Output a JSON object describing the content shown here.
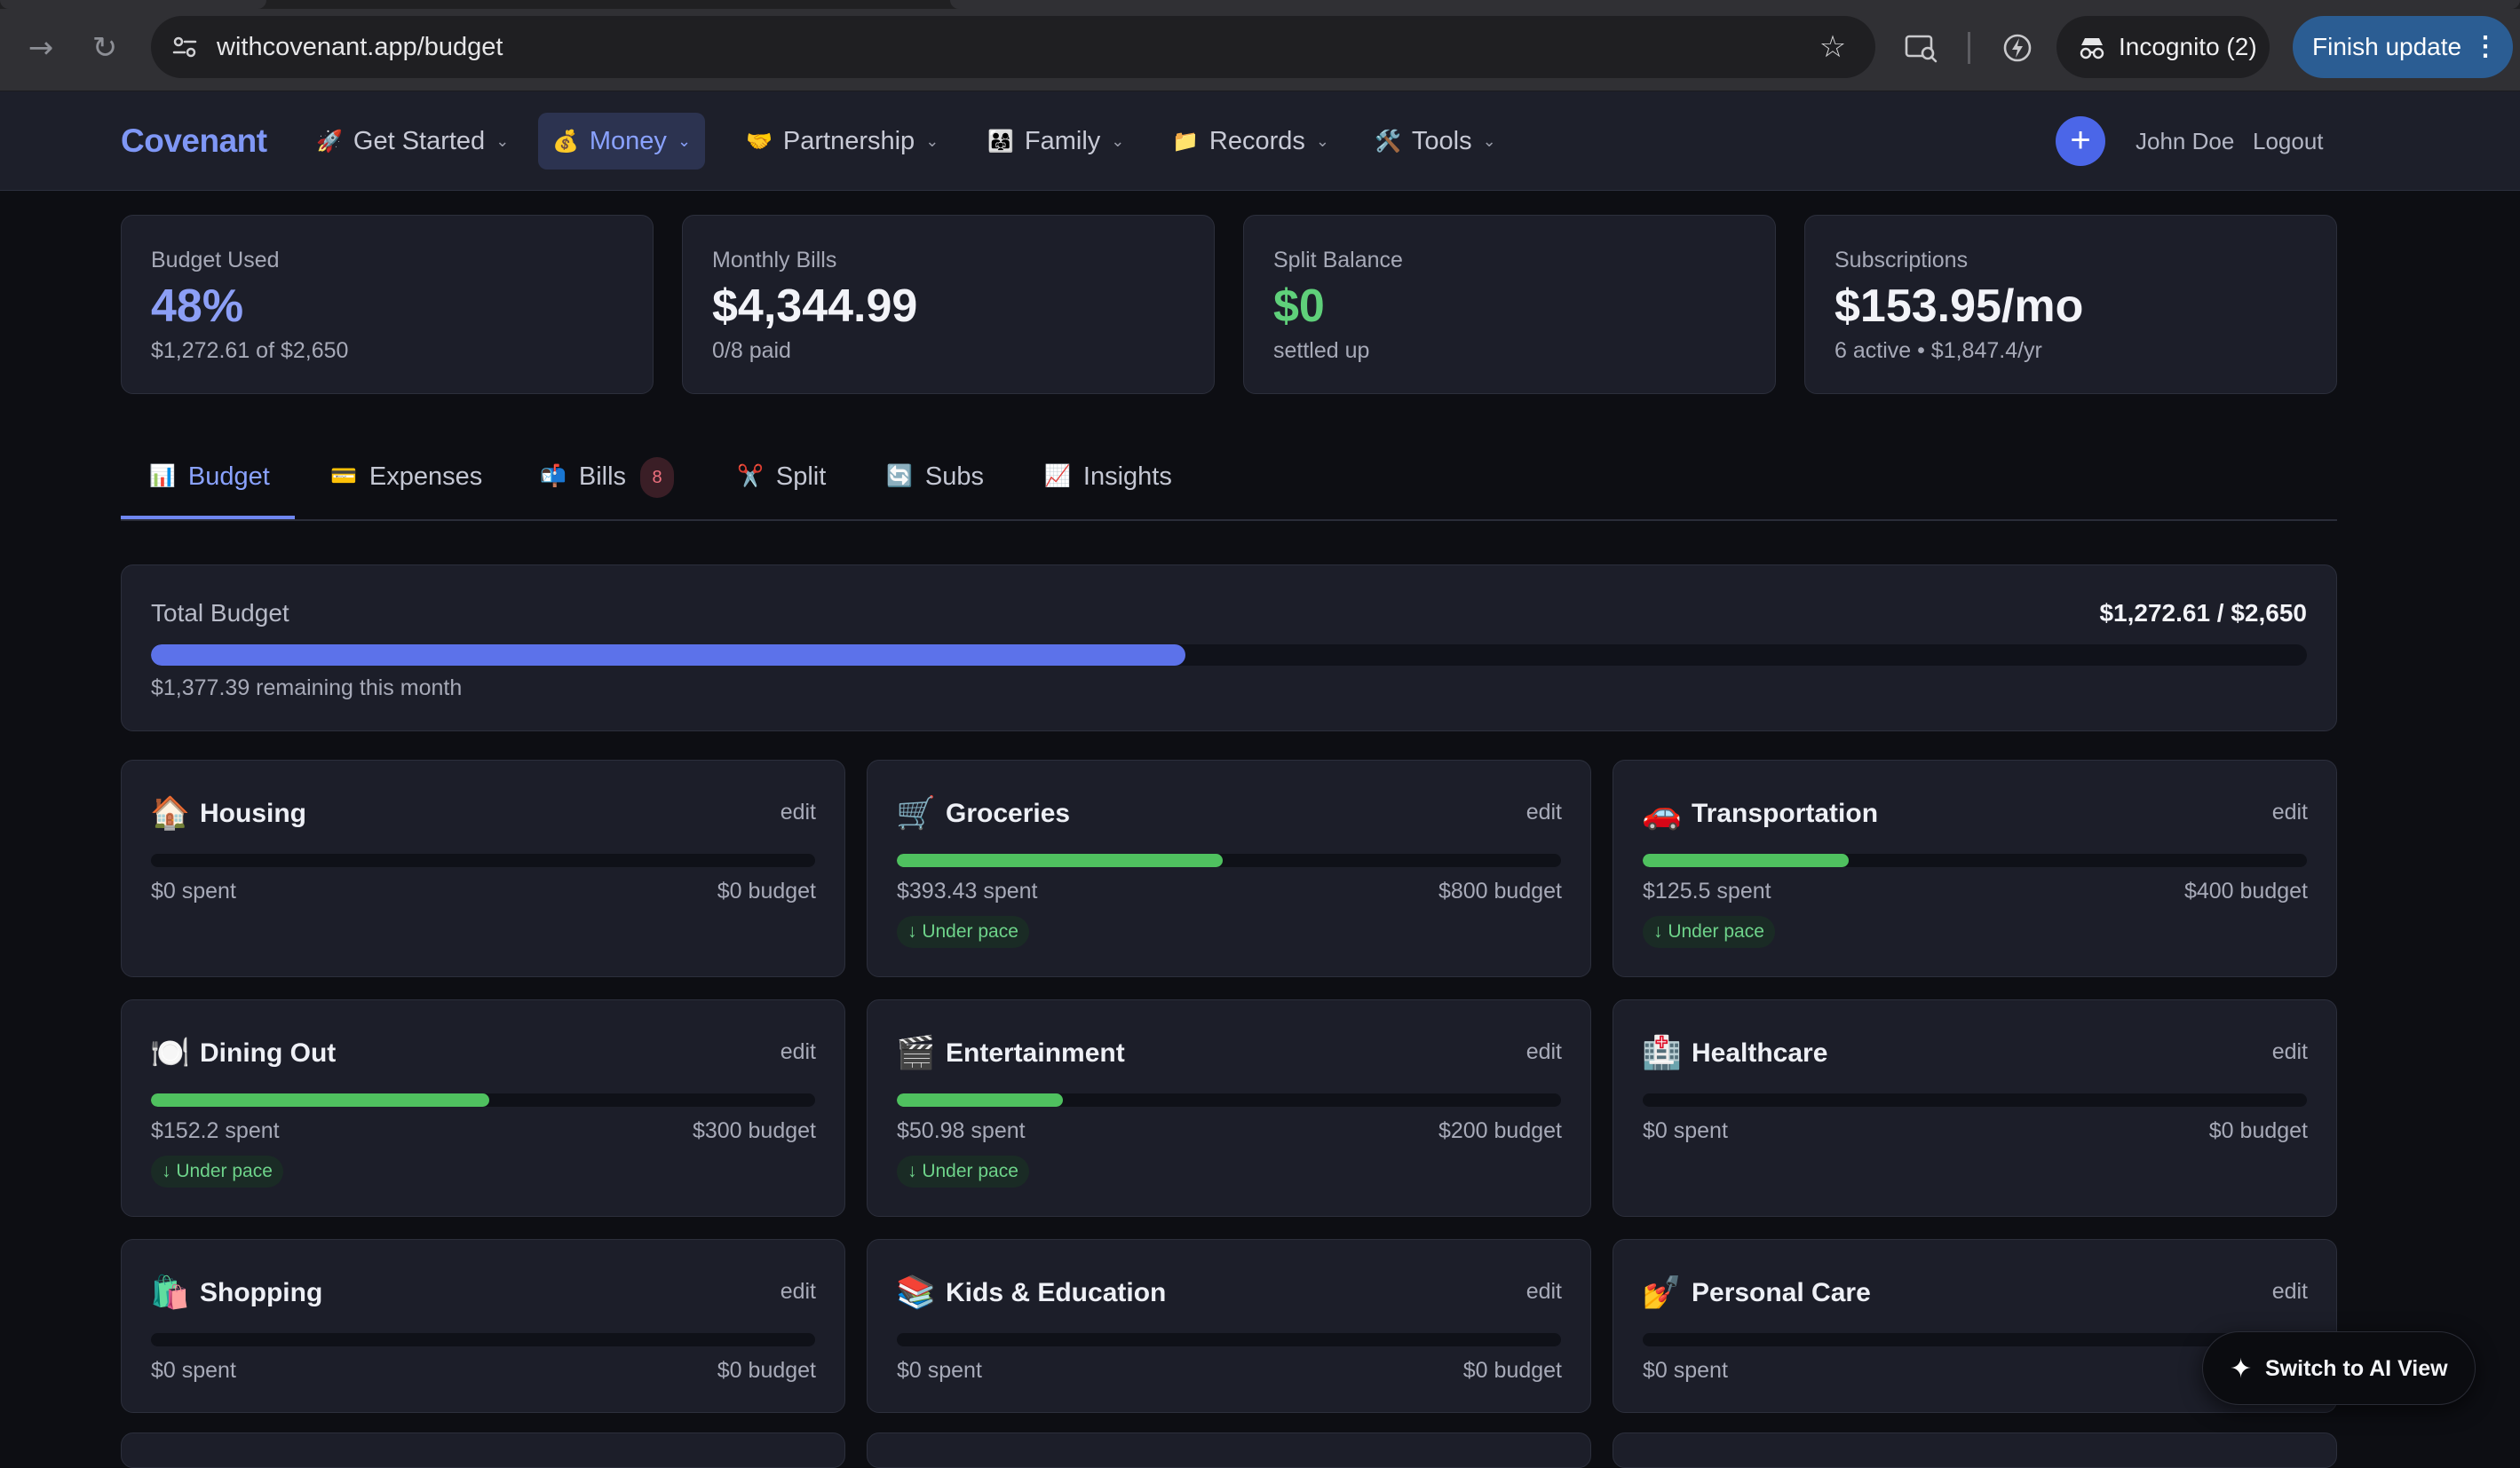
{
  "browser": {
    "url": "withcovenant.app/budget",
    "incognito_label": "Incognito (2)",
    "finish_update_label": "Finish update",
    "finish_update_menu": "⋮"
  },
  "app": {
    "logo": "Covenant",
    "nav": [
      {
        "emoji": "🚀",
        "label": "Get Started",
        "chevron": "⌄"
      },
      {
        "emoji": "💰",
        "label": "Money",
        "chevron": "⌄"
      },
      {
        "emoji": "🤝",
        "label": "Partnership",
        "chevron": "⌄"
      },
      {
        "emoji": "👨‍👩‍👧",
        "label": "Family",
        "chevron": "⌄"
      },
      {
        "emoji": "📁",
        "label": "Records",
        "chevron": "⌄"
      },
      {
        "emoji": "🛠️",
        "label": "Tools",
        "chevron": "⌄"
      }
    ],
    "plus_label": "+",
    "user_name": "John Doe",
    "logout_label": "Logout"
  },
  "stats": [
    {
      "title": "Budget Used",
      "value": "48%",
      "sub": "$1,272.61 of $2,650",
      "value_color": "#8c9ff6"
    },
    {
      "title": "Monthly Bills",
      "value": "$4,344.99",
      "sub": "0/8 paid",
      "value_color": "#f2f3f8"
    },
    {
      "title": "Split Balance",
      "value": "$0",
      "sub": "settled up",
      "value_color": "#5fd07a"
    },
    {
      "title": "Subscriptions",
      "value": "$153.95/mo",
      "sub": "6 active • $1,847.4/yr",
      "value_color": "#f2f3f8"
    }
  ],
  "tabs": [
    {
      "emoji": "📊",
      "label": "Budget"
    },
    {
      "emoji": "💳",
      "label": "Expenses"
    },
    {
      "emoji": "📬",
      "label": "Bills",
      "badge": "8"
    },
    {
      "emoji": "✂️",
      "label": "Split"
    },
    {
      "emoji": "🔄",
      "label": "Subs"
    },
    {
      "emoji": "📈",
      "label": "Insights"
    }
  ],
  "total_budget": {
    "title": "Total Budget",
    "amount": "$1,272.61 / $2,650",
    "progress": 0.48,
    "remaining": "$1,377.39 remaining this month"
  },
  "categories": [
    {
      "emoji": "🏠",
      "name": "Housing",
      "edit": "edit",
      "spent": "$0 spent",
      "budget": "$0 budget",
      "progress": 0,
      "pace": ""
    },
    {
      "emoji": "🛒",
      "name": "Groceries",
      "edit": "edit",
      "spent": "$393.43 spent",
      "budget": "$800 budget",
      "progress": 0.49,
      "pace": "↓ Under pace"
    },
    {
      "emoji": "🚗",
      "name": "Transportation",
      "edit": "edit",
      "spent": "$125.5 spent",
      "budget": "$400 budget",
      "progress": 0.31,
      "pace": "↓ Under pace"
    },
    {
      "emoji": "🍽️",
      "name": "Dining Out",
      "edit": "edit",
      "spent": "$152.2 spent",
      "budget": "$300 budget",
      "progress": 0.51,
      "pace": "↓ Under pace"
    },
    {
      "emoji": "🎬",
      "name": "Entertainment",
      "edit": "edit",
      "spent": "$50.98 spent",
      "budget": "$200 budget",
      "progress": 0.25,
      "pace": "↓ Under pace"
    },
    {
      "emoji": "🏥",
      "name": "Healthcare",
      "edit": "edit",
      "spent": "$0 spent",
      "budget": "$0 budget",
      "progress": 0,
      "pace": ""
    },
    {
      "emoji": "🛍️",
      "name": "Shopping",
      "edit": "edit",
      "spent": "$0 spent",
      "budget": "$0 budget",
      "progress": 0,
      "pace": ""
    },
    {
      "emoji": "📚",
      "name": "Kids & Education",
      "edit": "edit",
      "spent": "$0 spent",
      "budget": "$0 budget",
      "progress": 0,
      "pace": ""
    },
    {
      "emoji": "💅",
      "name": "Personal Care",
      "edit": "edit",
      "spent": "$0 spent",
      "budget": "",
      "progress": 0,
      "pace": ""
    }
  ],
  "ai_button": {
    "icon": "✦",
    "label": "Switch to AI View"
  }
}
